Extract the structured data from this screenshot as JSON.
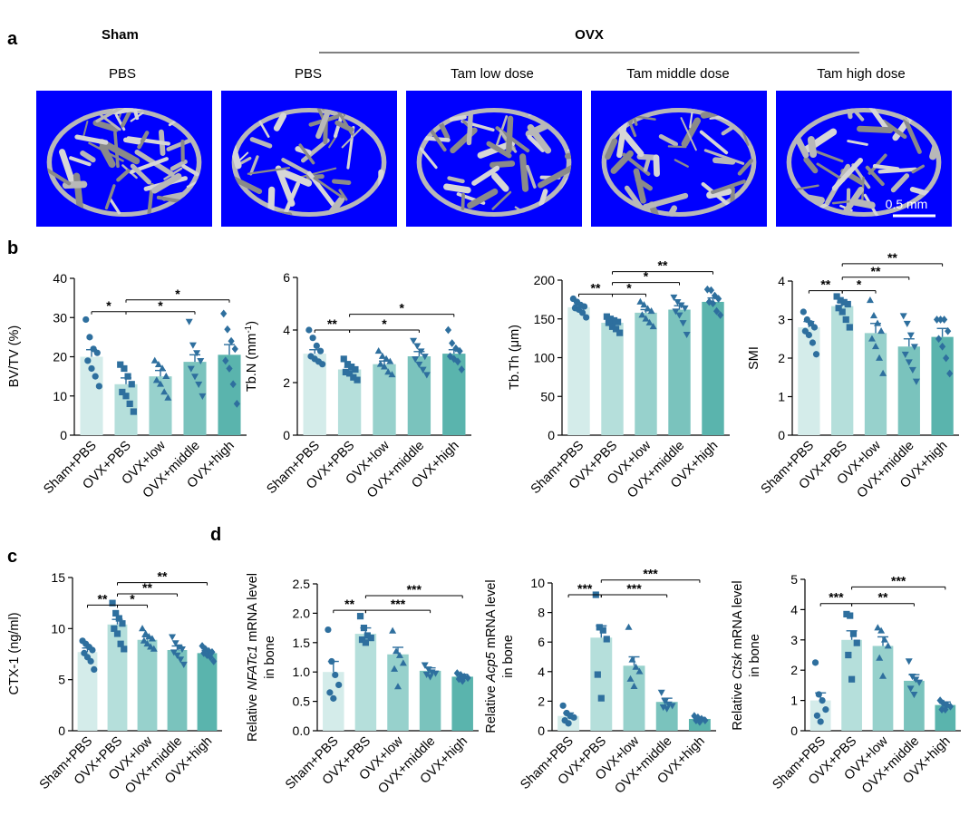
{
  "panels": {
    "a": "a",
    "b": "b",
    "c": "c",
    "d": "d"
  },
  "panel_a": {
    "sham_label": "Sham",
    "ovx_label": "OVX",
    "columns": [
      "PBS",
      "PBS",
      "Tam low dose",
      "Tam middle dose",
      "Tam high dose"
    ],
    "scale_bar_label": "0.5 mm",
    "image_bg": "#0000ff",
    "bone_color": "#b8b8b8"
  },
  "colors": [
    "#d4ecea",
    "#b5dfdb",
    "#97d1cc",
    "#7ac3bd",
    "#5ab4ad"
  ],
  "point_color": "#2e6f9e",
  "chart_data": [
    {
      "id": "bvtv",
      "type": "bar",
      "categories": [
        "Sham+PBS",
        "OVX+PBS",
        "OVX+low",
        "OVX+middle",
        "OVX+high"
      ],
      "ylabel_parts": [
        {
          "t": "BV/TV (%)",
          "i": false
        }
      ],
      "ylim": [
        0,
        40
      ],
      "yticks": [
        0,
        10,
        20,
        30,
        40
      ],
      "values": [
        20,
        13,
        15,
        18.7,
        20.5
      ],
      "errors": [
        1.8,
        1.6,
        1.5,
        1.8,
        2.6
      ],
      "markers": [
        "circle",
        "square",
        "triangle",
        "down",
        "diamond"
      ],
      "points": [
        [
          29.5,
          25,
          22,
          21,
          19,
          17,
          15,
          12.5
        ],
        [
          18,
          17,
          15,
          13,
          11,
          10,
          8,
          6
        ],
        [
          19,
          18,
          17,
          15,
          14,
          13,
          11,
          9.5
        ],
        [
          29,
          23,
          21,
          19,
          17,
          15,
          13,
          10
        ],
        [
          31,
          27,
          24,
          22,
          19,
          17,
          13,
          8
        ]
      ],
      "sig": [
        {
          "a": 0,
          "b": 1,
          "label": "*",
          "y": 31.5
        },
        {
          "a": 1,
          "b": 3,
          "label": "*",
          "y": 31.5
        },
        {
          "a": 1,
          "b": 4,
          "label": "*",
          "y": 34.5
        }
      ]
    },
    {
      "id": "tbn",
      "type": "bar",
      "categories": [
        "Sham+PBS",
        "OVX+PBS",
        "OVX+low",
        "OVX+middle",
        "OVX+high"
      ],
      "ylabel_parts": [
        {
          "t": "Tb.N (mm",
          "i": false
        },
        {
          "t": "-1",
          "i": false,
          "sup": true
        },
        {
          "t": ")",
          "i": false
        }
      ],
      "ylim": [
        0,
        6
      ],
      "yticks": [
        0,
        2,
        4,
        6
      ],
      "values": [
        3.1,
        2.5,
        2.7,
        3.0,
        3.1
      ],
      "errors": [
        0.15,
        0.08,
        0.12,
        0.18,
        0.15
      ],
      "markers": [
        "circle",
        "square",
        "triangle",
        "down",
        "diamond"
      ],
      "points": [
        [
          4.0,
          3.7,
          3.4,
          3.2,
          3.0,
          2.9,
          2.8,
          2.7
        ],
        [
          2.9,
          2.7,
          2.6,
          2.5,
          2.4,
          2.35,
          2.2,
          2.1
        ],
        [
          3.2,
          3.0,
          2.9,
          2.8,
          2.7,
          2.6,
          2.4,
          2.3
        ],
        [
          3.6,
          3.4,
          3.2,
          3.0,
          2.9,
          2.7,
          2.5,
          2.3
        ],
        [
          4.0,
          3.5,
          3.3,
          3.2,
          3.0,
          2.9,
          2.8,
          2.5
        ]
      ],
      "sig": [
        {
          "a": 0,
          "b": 1,
          "label": "**",
          "y": 4.0
        },
        {
          "a": 1,
          "b": 3,
          "label": "*",
          "y": 4.0
        },
        {
          "a": 1,
          "b": 4,
          "label": "*",
          "y": 4.6
        }
      ]
    },
    {
      "id": "tbth",
      "type": "bar",
      "categories": [
        "Sham+PBS",
        "OVX+PBS",
        "OVX+low",
        "OVX+middle",
        "OVX+high"
      ],
      "ylabel_parts": [
        {
          "t": "Tb.Th (μm)",
          "i": false
        }
      ],
      "ylim": [
        0,
        200
      ],
      "yticks": [
        0,
        50,
        100,
        150,
        200
      ],
      "values": [
        165,
        145,
        158,
        162,
        172
      ],
      "errors": [
        3,
        3,
        4,
        5,
        5
      ],
      "markers": [
        "circle",
        "square",
        "triangle",
        "down",
        "diamond"
      ],
      "points": [
        [
          176,
          172,
          168,
          166,
          164,
          162,
          158,
          152
        ],
        [
          153,
          150,
          148,
          146,
          145,
          140,
          137,
          132
        ],
        [
          172,
          168,
          163,
          160,
          155,
          150,
          145,
          140
        ],
        [
          178,
          172,
          168,
          164,
          160,
          155,
          145,
          130
        ],
        [
          188,
          187,
          180,
          176,
          172,
          170,
          160,
          155
        ]
      ],
      "sig": [
        {
          "a": 0,
          "b": 1,
          "label": "**",
          "y": 182
        },
        {
          "a": 1,
          "b": 2,
          "label": "*",
          "y": 182
        },
        {
          "a": 1,
          "b": 3,
          "label": "*",
          "y": 197
        },
        {
          "a": 1,
          "b": 4,
          "label": "**",
          "y": 211
        }
      ]
    },
    {
      "id": "smi",
      "type": "bar",
      "categories": [
        "Sham+PBS",
        "OVX+PBS",
        "OVX+low",
        "OVX+middle",
        "OVX+high"
      ],
      "ylabel_parts": [
        {
          "t": "SMI",
          "i": false
        }
      ],
      "ylim": [
        0,
        4
      ],
      "yticks": [
        0,
        1,
        2,
        3,
        4
      ],
      "values": [
        2.8,
        3.35,
        2.65,
        2.3,
        2.55
      ],
      "errors": [
        0.15,
        0.1,
        0.25,
        0.2,
        0.22
      ],
      "markers": [
        "circle",
        "square",
        "triangle",
        "down",
        "diamond"
      ],
      "points": [
        [
          3.2,
          3.0,
          2.9,
          2.8,
          2.7,
          2.6,
          2.4,
          2.1
        ],
        [
          3.6,
          3.5,
          3.45,
          3.4,
          3.3,
          3.2,
          3.0,
          2.8
        ],
        [
          3.5,
          3.1,
          2.9,
          2.7,
          2.5,
          2.3,
          2.0,
          1.6
        ],
        [
          3.1,
          2.9,
          2.6,
          2.3,
          2.1,
          1.9,
          1.7,
          1.4
        ],
        [
          3.0,
          3.0,
          3.0,
          2.7,
          2.5,
          2.3,
          2.0,
          1.6
        ]
      ],
      "sig": [
        {
          "a": 0,
          "b": 1,
          "label": "**",
          "y": 3.75
        },
        {
          "a": 1,
          "b": 2,
          "label": "*",
          "y": 3.75
        },
        {
          "a": 1,
          "b": 3,
          "label": "**",
          "y": 4.1
        },
        {
          "a": 1,
          "b": 4,
          "label": "**",
          "y": 4.45
        }
      ]
    },
    {
      "id": "ctx",
      "type": "bar",
      "categories": [
        "Sham+PBS",
        "OVX+PBS",
        "OVX+low",
        "OVX+middle",
        "OVX+high"
      ],
      "ylabel_parts": [
        {
          "t": "CTX-1 (ng/ml)",
          "i": false
        }
      ],
      "ylim": [
        0,
        15
      ],
      "yticks": [
        0,
        5,
        10,
        15
      ],
      "values": [
        7.7,
        10.4,
        8.9,
        7.9,
        7.6
      ],
      "errors": [
        0.4,
        0.5,
        0.3,
        0.4,
        0.25
      ],
      "markers": [
        "circle",
        "square",
        "triangle",
        "down",
        "diamond"
      ],
      "points": [
        [
          8.8,
          8.5,
          8.2,
          7.9,
          7.6,
          7.2,
          6.8,
          6.0
        ],
        [
          12.5,
          11.5,
          11.0,
          10.5,
          10.0,
          9.5,
          8.5,
          8.0
        ],
        [
          10.0,
          9.5,
          9.2,
          9.0,
          8.8,
          8.5,
          8.2,
          8.0
        ],
        [
          9.2,
          8.6,
          8.2,
          8.0,
          7.7,
          7.4,
          7.0,
          6.5
        ],
        [
          8.3,
          8.0,
          7.8,
          7.7,
          7.6,
          7.4,
          7.2,
          6.8
        ]
      ],
      "sig": [
        {
          "a": 0,
          "b": 1,
          "label": "**",
          "y": 12.3
        },
        {
          "a": 1,
          "b": 2,
          "label": "*",
          "y": 12.3
        },
        {
          "a": 1,
          "b": 3,
          "label": "**",
          "y": 13.4
        },
        {
          "a": 1,
          "b": 4,
          "label": "**",
          "y": 14.5
        }
      ]
    },
    {
      "id": "nfatc1",
      "type": "bar",
      "categories": [
        "Sham+PBS",
        "OVX+PBS",
        "OVX+low",
        "OVX+middle",
        "OVX+high"
      ],
      "ylabel_parts": [
        {
          "t": "Relative ",
          "i": false
        },
        {
          "t": "NFATc1",
          "i": true
        },
        {
          "t": " mRNA level",
          "i": false
        }
      ],
      "ylabel2": "in bone",
      "ylim": [
        0,
        2.5
      ],
      "yticks": [
        0,
        0.5,
        1.0,
        1.5,
        2.0,
        2.5
      ],
      "tickfmt": 1,
      "values": [
        1.0,
        1.65,
        1.3,
        1.02,
        0.92
      ],
      "errors": [
        0.18,
        0.1,
        0.12,
        0.05,
        0.04
      ],
      "markers": [
        "circle",
        "square",
        "triangle",
        "down",
        "diamond"
      ],
      "points": [
        [
          1.72,
          1.18,
          0.95,
          0.78,
          0.65,
          0.55
        ],
        [
          1.95,
          1.75,
          1.62,
          1.58,
          1.55,
          1.5
        ],
        [
          1.7,
          1.35,
          1.28,
          1.15,
          1.05,
          0.75
        ],
        [
          1.12,
          1.05,
          1.0,
          0.98,
          0.96,
          0.92
        ],
        [
          0.98,
          0.95,
          0.92,
          0.9,
          0.88,
          0.85
        ]
      ],
      "sig": [
        {
          "a": 0,
          "b": 1,
          "label": "**",
          "y": 2.05
        },
        {
          "a": 1,
          "b": 3,
          "label": "***",
          "y": 2.05
        },
        {
          "a": 1,
          "b": 4,
          "label": "***",
          "y": 2.3
        }
      ]
    },
    {
      "id": "acp5",
      "type": "bar",
      "categories": [
        "Sham+PBS",
        "OVX+PBS",
        "OVX+low",
        "OVX+middle",
        "OVX+high"
      ],
      "ylabel_parts": [
        {
          "t": "Relative ",
          "i": false
        },
        {
          "t": "Acp5",
          "i": true
        },
        {
          "t": " mRNA level",
          "i": false
        }
      ],
      "ylabel2": "in bone",
      "ylim": [
        0,
        10
      ],
      "yticks": [
        0,
        2,
        4,
        6,
        8,
        10
      ],
      "values": [
        1.0,
        6.3,
        4.4,
        1.95,
        0.8
      ],
      "errors": [
        0.2,
        0.8,
        0.6,
        0.25,
        0.1
      ],
      "markers": [
        "circle",
        "square",
        "triangle",
        "down",
        "diamond"
      ],
      "points": [
        [
          1.7,
          1.2,
          1.0,
          0.9,
          0.7,
          0.5
        ],
        [
          9.2,
          7.0,
          6.8,
          6.2,
          3.8,
          2.2
        ],
        [
          7.0,
          4.8,
          4.3,
          4.0,
          3.5,
          3.0
        ],
        [
          2.6,
          2.0,
          1.8,
          1.7,
          1.6,
          1.5
        ],
        [
          1.0,
          0.9,
          0.8,
          0.7,
          0.7,
          0.6
        ]
      ],
      "sig": [
        {
          "a": 0,
          "b": 1,
          "label": "***",
          "y": 9.2
        },
        {
          "a": 1,
          "b": 3,
          "label": "***",
          "y": 9.2
        },
        {
          "a": 1,
          "b": 4,
          "label": "***",
          "y": 10.2
        }
      ]
    },
    {
      "id": "ctsk",
      "type": "bar",
      "categories": [
        "Sham+PBS",
        "OVX+PBS",
        "OVX+low",
        "OVX+middle",
        "OVX+high"
      ],
      "ylabel_parts": [
        {
          "t": "Relative ",
          "i": false
        },
        {
          "t": "Ctsk",
          "i": true
        },
        {
          "t": " mRNA level",
          "i": false
        }
      ],
      "ylabel2": "in bone",
      "ylim": [
        0,
        5
      ],
      "yticks": [
        0,
        1,
        2,
        3,
        4,
        5
      ],
      "values": [
        1.0,
        3.0,
        2.8,
        1.65,
        0.85
      ],
      "errors": [
        0.25,
        0.3,
        0.3,
        0.2,
        0.1
      ],
      "markers": [
        "circle",
        "square",
        "triangle",
        "down",
        "diamond"
      ],
      "points": [
        [
          2.25,
          1.2,
          1.0,
          0.7,
          0.5,
          0.3
        ],
        [
          3.85,
          3.8,
          3.2,
          2.9,
          2.5,
          1.7
        ],
        [
          3.4,
          3.3,
          3.0,
          2.8,
          2.4,
          1.8
        ],
        [
          2.3,
          1.8,
          1.7,
          1.6,
          1.4,
          1.2
        ],
        [
          1.0,
          0.9,
          0.85,
          0.8,
          0.7,
          0.7
        ]
      ],
      "sig": [
        {
          "a": 0,
          "b": 1,
          "label": "***",
          "y": 4.2
        },
        {
          "a": 1,
          "b": 3,
          "label": "**",
          "y": 4.2
        },
        {
          "a": 1,
          "b": 4,
          "label": "***",
          "y": 4.75
        }
      ]
    }
  ]
}
